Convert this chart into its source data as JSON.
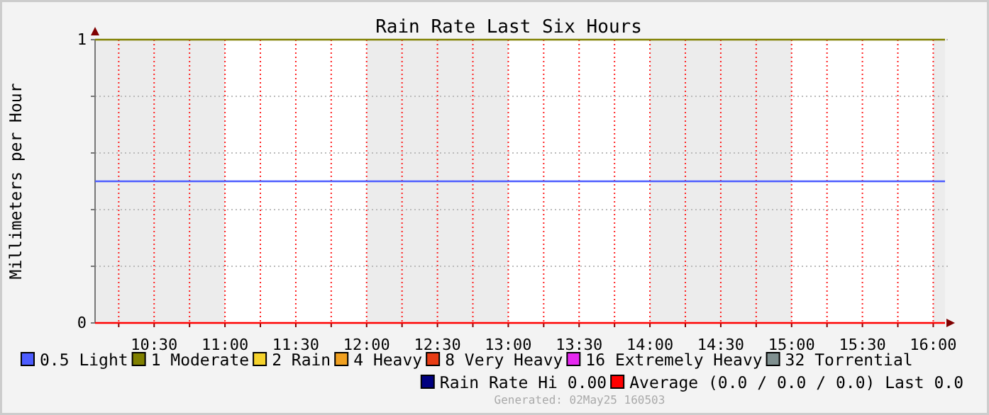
{
  "chart_data": {
    "type": "line",
    "title": "Rain Rate Last Six Hours",
    "ylabel": "Millimeters per Hour",
    "xlim": [
      10.083,
      16.083
    ],
    "ylim": [
      0,
      1
    ],
    "xticks": [
      {
        "value": 10.25,
        "label": null
      },
      {
        "value": 10.5,
        "label": "10:30"
      },
      {
        "value": 10.75,
        "label": null
      },
      {
        "value": 11,
        "label": "11:00"
      },
      {
        "value": 11.25,
        "label": null
      },
      {
        "value": 11.5,
        "label": "11:30"
      },
      {
        "value": 11.75,
        "label": null
      },
      {
        "value": 12,
        "label": "12:00"
      },
      {
        "value": 12.25,
        "label": null
      },
      {
        "value": 12.5,
        "label": "12:30"
      },
      {
        "value": 12.75,
        "label": null
      },
      {
        "value": 13,
        "label": "13:00"
      },
      {
        "value": 13.25,
        "label": null
      },
      {
        "value": 13.5,
        "label": "13:30"
      },
      {
        "value": 13.75,
        "label": null
      },
      {
        "value": 14,
        "label": "14:00"
      },
      {
        "value": 14.25,
        "label": null
      },
      {
        "value": 14.5,
        "label": "14:30"
      },
      {
        "value": 14.75,
        "label": null
      },
      {
        "value": 15,
        "label": "15:00"
      },
      {
        "value": 15.25,
        "label": null
      },
      {
        "value": 15.5,
        "label": "15:30"
      },
      {
        "value": 15.75,
        "label": null
      },
      {
        "value": 16,
        "label": "16:00"
      }
    ],
    "yticks": [
      0,
      {
        "value": 0.2,
        "label": null
      },
      {
        "value": 0.4,
        "label": null
      },
      {
        "value": 0.6,
        "label": null
      },
      {
        "value": 0.8,
        "label": null
      },
      1
    ],
    "grid": true,
    "legend": "bottom",
    "marker": "none",
    "line_style": "solid",
    "x": [
      10.083,
      16.083
    ],
    "bands": [
      {
        "axis": "x",
        "from": 10.083,
        "to": 11,
        "color": "#ececec"
      },
      {
        "axis": "x",
        "from": 12,
        "to": 13,
        "color": "#ececec"
      },
      {
        "axis": "x",
        "from": 14,
        "to": 15,
        "color": "#ececec"
      },
      {
        "axis": "x",
        "from": 16,
        "to": 16.083,
        "color": "#ececec"
      }
    ],
    "series": [
      {
        "name": "0.5 Light",
        "color": "#4c5cff",
        "values": [
          0.5,
          0.5
        ]
      },
      {
        "name": "1 Moderate",
        "color": "#808000",
        "values": [
          1,
          1
        ]
      },
      {
        "name": "2 Rain",
        "color": "#f5d22c",
        "values": [
          null,
          null
        ]
      },
      {
        "name": "4 Heavy",
        "color": "#f0a020",
        "values": [
          null,
          null
        ]
      },
      {
        "name": "8 Very Heavy",
        "color": "#e83c14",
        "values": [
          null,
          null
        ]
      },
      {
        "name": "16 Extremely Heavy",
        "color": "#e628f0",
        "values": [
          null,
          null
        ]
      },
      {
        "name": "32 Torrential",
        "color": "#809090",
        "values": [
          null,
          null
        ]
      },
      {
        "name": "Rain Rate  Hi 0.00",
        "color": "#000080",
        "values": [
          null,
          null
        ]
      },
      {
        "name": "Average (0.0 / 0.0 / 0.0) Last 0.0",
        "color": "#ff0000",
        "values": [
          0,
          0
        ]
      }
    ],
    "annotations": [
      "Generated: 02May25 160503"
    ]
  }
}
